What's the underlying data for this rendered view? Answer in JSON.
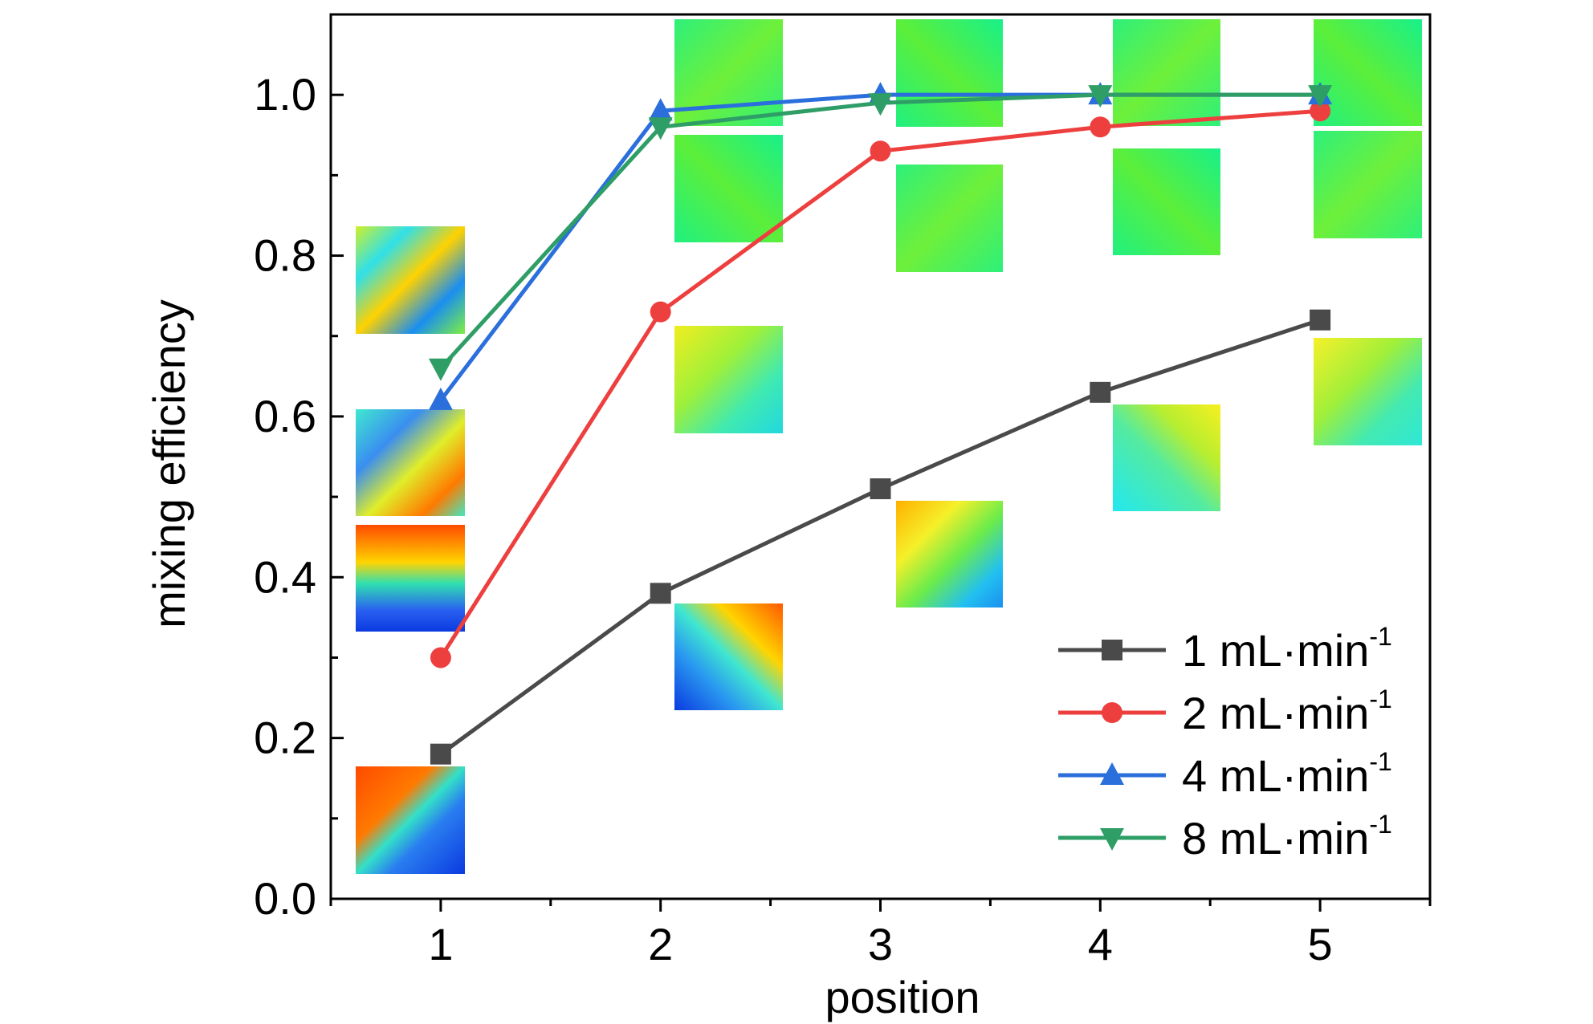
{
  "chart_data": {
    "type": "line",
    "xlabel": "position",
    "ylabel": "mixing efficiency",
    "xlim": [
      0.5,
      5.5
    ],
    "ylim": [
      0.0,
      1.1
    ],
    "x_ticks": [
      1,
      2,
      3,
      4,
      5
    ],
    "y_ticks": [
      0.0,
      0.2,
      0.4,
      0.6,
      0.8,
      1.0
    ],
    "y_tick_labels": [
      "0.0",
      "0.2",
      "0.4",
      "0.6",
      "0.8",
      "1.0"
    ],
    "x": [
      1,
      2,
      3,
      4,
      5
    ],
    "legend_position": "bottom-right",
    "series": [
      {
        "name": "1 mL·min",
        "unit_sup": "-1",
        "marker": "square",
        "color": "#4a4a4a",
        "values": [
          0.18,
          0.38,
          0.51,
          0.63,
          0.72
        ]
      },
      {
        "name": "2 mL·min",
        "unit_sup": "-1",
        "marker": "circle",
        "color": "#ee3f3f",
        "values": [
          0.3,
          0.73,
          0.93,
          0.96,
          0.98
        ]
      },
      {
        "name": "4 mL·min",
        "unit_sup": "-1",
        "marker": "triangle-up",
        "color": "#2a6fdb",
        "values": [
          0.62,
          0.98,
          1.0,
          1.0,
          1.0
        ]
      },
      {
        "name": "8 mL·min",
        "unit_sup": "-1",
        "marker": "triangle-down",
        "color": "#2e9e66",
        "values": [
          0.66,
          0.96,
          0.99,
          1.0,
          1.0
        ]
      }
    ],
    "inset_contour_maps": "concentration cross-section contour images at each position for each flow rate"
  }
}
